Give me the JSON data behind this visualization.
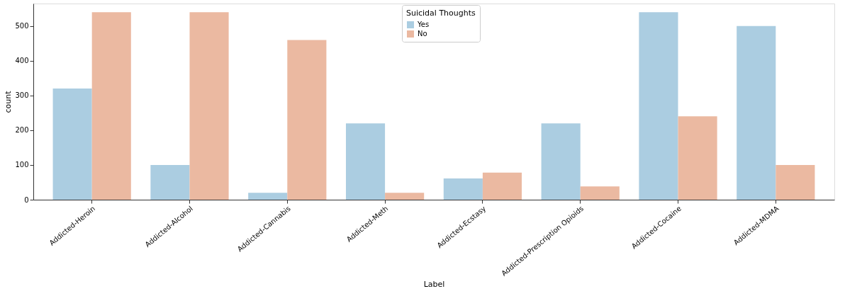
{
  "chart_data": {
    "type": "bar",
    "xlabel": "Label",
    "ylabel": "count",
    "legend_title": "Suicidal Thoughts",
    "legend": "top",
    "grid": false,
    "categories": [
      "Addicted-Heroin",
      "Addicted-Alcohol",
      "Addicted-Cannabis",
      "Addicted-Meth",
      "Addicted-Ecstasy",
      "Addicted-Prescription Opioids",
      "Addicted-Cocaine",
      "Addicted-MDMA"
    ],
    "series": [
      {
        "name": "Yes",
        "color": "#abcde1",
        "values": [
          320,
          100,
          20,
          220,
          61,
          220,
          540,
          500
        ]
      },
      {
        "name": "No",
        "color": "#ebb9a1",
        "values": [
          540,
          540,
          460,
          20,
          78,
          38,
          240,
          100
        ]
      }
    ],
    "ylim": [
      0,
      565
    ],
    "yticks": [
      0,
      100,
      200,
      300,
      400,
      500
    ]
  }
}
